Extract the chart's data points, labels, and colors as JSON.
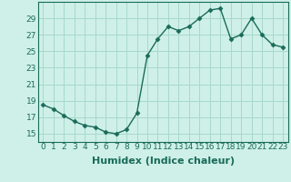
{
  "x": [
    0,
    1,
    2,
    3,
    4,
    5,
    6,
    7,
    8,
    9,
    10,
    11,
    12,
    13,
    14,
    15,
    16,
    17,
    18,
    19,
    20,
    21,
    22,
    23
  ],
  "y": [
    18.5,
    18.0,
    17.2,
    16.5,
    16.0,
    15.8,
    15.2,
    15.0,
    15.5,
    17.5,
    24.5,
    26.5,
    28.0,
    27.5,
    28.0,
    29.0,
    30.0,
    30.2,
    26.5,
    27.0,
    29.0,
    27.0,
    25.8,
    25.5
  ],
  "xlabel": "Humidex (Indice chaleur)",
  "xlim": [
    -0.5,
    23.5
  ],
  "ylim": [
    14.0,
    31.0
  ],
  "yticks": [
    15,
    17,
    19,
    21,
    23,
    25,
    27,
    29
  ],
  "xticks": [
    0,
    1,
    2,
    3,
    4,
    5,
    6,
    7,
    8,
    9,
    10,
    11,
    12,
    13,
    14,
    15,
    16,
    17,
    18,
    19,
    20,
    21,
    22,
    23
  ],
  "line_color": "#1a6b5a",
  "marker": "D",
  "marker_size": 2.5,
  "bg_color": "#cef0e8",
  "grid_color": "#a8d8cc",
  "xlabel_fontsize": 8,
  "tick_fontsize": 6.5,
  "linewidth": 1.0
}
